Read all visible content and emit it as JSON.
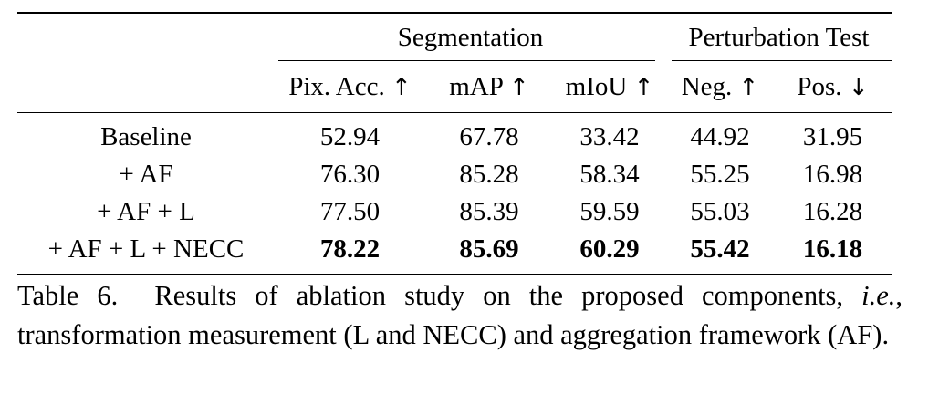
{
  "table": {
    "group_headers": {
      "segmentation": "Segmentation",
      "perturbation": "Perturbation Test"
    },
    "sub_headers": [
      {
        "text": "Pix. Acc.",
        "arrow": "↑"
      },
      {
        "text": "mAP",
        "arrow": "↑"
      },
      {
        "text": "mIoU",
        "arrow": "↑"
      },
      {
        "text": "Neg.",
        "arrow": "↑"
      },
      {
        "text": "Pos.",
        "arrow": "↓"
      }
    ],
    "rows": [
      {
        "method": "Baseline",
        "values": [
          "52.94",
          "67.78",
          "33.42",
          "44.92",
          "31.95"
        ],
        "bold": false
      },
      {
        "method": "+ AF",
        "values": [
          "76.30",
          "85.28",
          "58.34",
          "55.25",
          "16.98"
        ],
        "bold": false
      },
      {
        "method": "+ AF + L",
        "values": [
          "77.50",
          "85.39",
          "59.59",
          "55.03",
          "16.28"
        ],
        "bold": false
      },
      {
        "method": "+ AF + L + NECC",
        "values": [
          "78.22",
          "85.69",
          "60.29",
          "55.42",
          "16.18"
        ],
        "bold": true
      }
    ]
  },
  "caption": {
    "label": "Table 6.",
    "text_1": "Results of ablation study on the proposed components,",
    "ie": "i.e.",
    "text_2": ", transformation measurement (L and NECC) and aggregation framework (AF)."
  }
}
